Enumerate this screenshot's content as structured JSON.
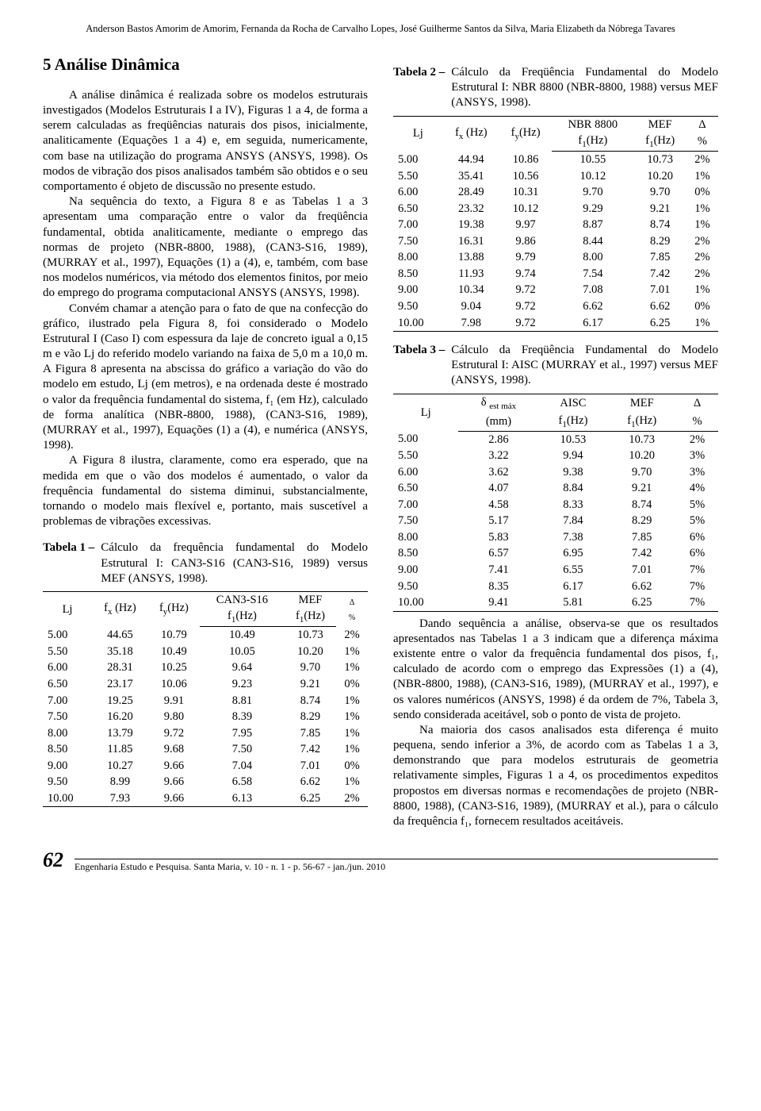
{
  "authors": "Anderson Bastos Amorim de Amorim, Fernanda da Rocha de Carvalho Lopes, José Guilherme Santos da Silva, Maria Elizabeth da Nóbrega Tavares",
  "section_title": "5 Análise Dinâmica",
  "para1": "A análise dinâmica é realizada sobre os modelos estruturais investigados (Modelos Estruturais I a IV), Figuras 1 a 4, de forma a serem calculadas as freqüências naturais dos pisos, inicialmente, analiticamente (Equações 1 a 4) e, em seguida, numericamente, com base na utilização do programa ANSYS (ANSYS, 1998). Os modos de vibração dos pisos analisados também são obtidos e o seu comportamento é objeto de discussão no presente estudo.",
  "para2": "Na sequência do texto, a Figura 8 e as Tabelas 1 a 3 apresentam uma comparação entre o valor da freqüência fundamental, obtida analiticamente, mediante o emprego das normas de projeto (NBR-8800, 1988), (CAN3-S16, 1989), (MURRAY et al., 1997), Equações (1) a (4), e, também, com base nos modelos numéricos, via método dos elementos finitos, por meio do emprego do programa computacional ANSYS (ANSYS, 1998).",
  "para3": "Convém chamar a atenção para o fato de que na confecção do gráfico, ilustrado pela Figura 8, foi considerado o Modelo Estrutural I (Caso I) com espessura da laje de concreto igual a 0,15 m e vão Lj do referido modelo variando na faixa de 5,0 m a 10,0 m. A Figura 8 apresenta na abscissa do gráfico a variação do vão do modelo em estudo, Lj (em metros), e na ordenada deste é mostrado o valor da frequência fundamental do sistema, f₁ (em Hz), calculado de forma analítica (NBR-8800, 1988), (CAN3-S16, 1989), (MURRAY et al., 1997), Equações (1) a (4), e numérica (ANSYS, 1998).",
  "para4": "A Figura 8 ilustra, claramente, como era esperado, que na medida em que o vão dos modelos é aumentado, o valor da frequência fundamental do sistema diminui, substancialmente, tornando o modelo mais flexível e, portanto, mais suscetível a problemas de vibrações excessivas.",
  "table1": {
    "label": "Tabela 1 –",
    "caption": "Cálculo da frequência fundamental do Modelo Estrutural I: CAN3-S16 (CAN3-S16, 1989) versus MEF (ANSYS, 1998).",
    "rows": [
      [
        "5.00",
        "44.65",
        "10.79",
        "10.49",
        "10.73",
        "2%"
      ],
      [
        "5.50",
        "35.18",
        "10.49",
        "10.05",
        "10.20",
        "1%"
      ],
      [
        "6.00",
        "28.31",
        "10.25",
        "9.64",
        "9.70",
        "1%"
      ],
      [
        "6.50",
        "23.17",
        "10.06",
        "9.23",
        "9.21",
        "0%"
      ],
      [
        "7.00",
        "19.25",
        "9.91",
        "8.81",
        "8.74",
        "1%"
      ],
      [
        "7.50",
        "16.20",
        "9.80",
        "8.39",
        "8.29",
        "1%"
      ],
      [
        "8.00",
        "13.79",
        "9.72",
        "7.95",
        "7.85",
        "1%"
      ],
      [
        "8.50",
        "11.85",
        "9.68",
        "7.50",
        "7.42",
        "1%"
      ],
      [
        "9.00",
        "10.27",
        "9.66",
        "7.04",
        "7.01",
        "0%"
      ],
      [
        "9.50",
        "8.99",
        "9.66",
        "6.58",
        "6.62",
        "1%"
      ],
      [
        "10.00",
        "7.93",
        "9.66",
        "6.13",
        "6.25",
        "2%"
      ]
    ]
  },
  "table2": {
    "label": "Tabela 2 –",
    "caption": "Cálculo da Freqüência Fundamental do Modelo Estrutural I: NBR 8800 (NBR-8800, 1988) versus MEF (ANSYS, 1998).",
    "rows": [
      [
        "5.00",
        "44.94",
        "10.86",
        "10.55",
        "10.73",
        "2%"
      ],
      [
        "5.50",
        "35.41",
        "10.56",
        "10.12",
        "10.20",
        "1%"
      ],
      [
        "6.00",
        "28.49",
        "10.31",
        "9.70",
        "9.70",
        "0%"
      ],
      [
        "6.50",
        "23.32",
        "10.12",
        "9.29",
        "9.21",
        "1%"
      ],
      [
        "7.00",
        "19.38",
        "9.97",
        "8.87",
        "8.74",
        "1%"
      ],
      [
        "7.50",
        "16.31",
        "9.86",
        "8.44",
        "8.29",
        "2%"
      ],
      [
        "8.00",
        "13.88",
        "9.79",
        "8.00",
        "7.85",
        "2%"
      ],
      [
        "8.50",
        "11.93",
        "9.74",
        "7.54",
        "7.42",
        "2%"
      ],
      [
        "9.00",
        "10.34",
        "9.72",
        "7.08",
        "7.01",
        "1%"
      ],
      [
        "9.50",
        "9.04",
        "9.72",
        "6.62",
        "6.62",
        "0%"
      ],
      [
        "10.00",
        "7.98",
        "9.72",
        "6.17",
        "6.25",
        "1%"
      ]
    ]
  },
  "table3": {
    "label": "Tabela 3 –",
    "caption": "Cálculo da Freqüência Fundamental do Modelo Estrutural I: AISC (MURRAY et al., 1997) versus MEF (ANSYS, 1998).",
    "rows": [
      [
        "5.00",
        "2.86",
        "10.53",
        "10.73",
        "2%"
      ],
      [
        "5.50",
        "3.22",
        "9.94",
        "10.20",
        "3%"
      ],
      [
        "6.00",
        "3.62",
        "9.38",
        "9.70",
        "3%"
      ],
      [
        "6.50",
        "4.07",
        "8.84",
        "9.21",
        "4%"
      ],
      [
        "7.00",
        "4.58",
        "8.33",
        "8.74",
        "5%"
      ],
      [
        "7.50",
        "5.17",
        "7.84",
        "8.29",
        "5%"
      ],
      [
        "8.00",
        "5.83",
        "7.38",
        "7.85",
        "6%"
      ],
      [
        "8.50",
        "6.57",
        "6.95",
        "7.42",
        "6%"
      ],
      [
        "9.00",
        "7.41",
        "6.55",
        "7.01",
        "7%"
      ],
      [
        "9.50",
        "8.35",
        "6.17",
        "6.62",
        "7%"
      ],
      [
        "10.00",
        "9.41",
        "5.81",
        "6.25",
        "7%"
      ]
    ]
  },
  "para5": "Dando sequência a análise, observa-se que os resultados apresentados nas Tabelas 1 a 3 indicam que a diferença máxima existente entre o valor da frequência fundamental dos pisos, f₁, calculado de acordo com o emprego das Expressões (1) a (4), (NBR-8800, 1988), (CAN3-S16, 1989), (MURRAY et al., 1997), e os valores numéricos (ANSYS, 1998) é da ordem de 7%, Tabela 3, sendo considerada aceitável, sob o ponto de vista de projeto.",
  "para6": "Na maioria dos casos analisados esta diferença é muito pequena, sendo inferior a 3%, de acordo com as Tabelas 1 a 3, demonstrando que para modelos estruturais de geometria relativamente simples, Figuras 1 a 4, os procedimentos expeditos propostos em diversas normas e recomendações de projeto (NBR-8800, 1988), (CAN3-S16, 1989), (MURRAY et al.), para o cálculo da frequência f₁, fornecem resultados aceitáveis.",
  "page_number": "62",
  "footer_text": "Engenharia Estudo e Pesquisa. Santa Maria, v. 10 - n. 1 - p. 56-67 - jan./jun. 2010"
}
